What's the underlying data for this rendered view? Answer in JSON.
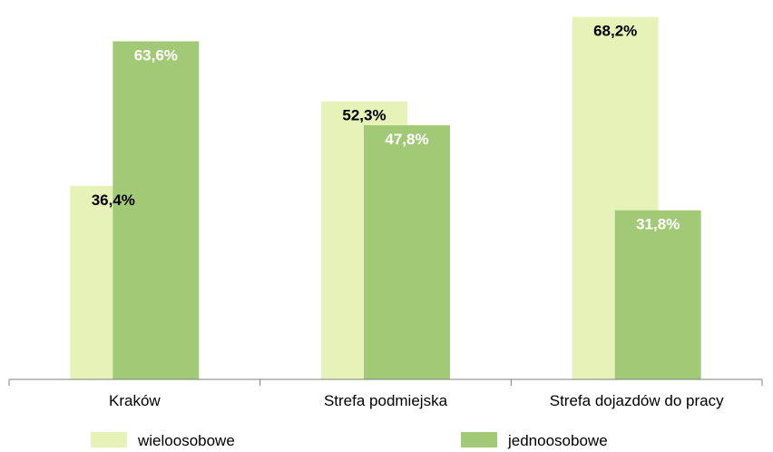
{
  "chart_data": {
    "type": "bar",
    "categories": [
      "Kraków",
      "Strefa podmiejska",
      "Strefa dojazdów do pracy"
    ],
    "series": [
      {
        "name": "wieloosobowe",
        "values": [
          36.4,
          52.3,
          68.2
        ],
        "labels": [
          "36,4%",
          "52,3%",
          "68,2%"
        ],
        "color": "#e6f2b8",
        "label_color": "#000000"
      },
      {
        "name": "jednoosobowe",
        "values": [
          63.6,
          47.8,
          31.8
        ],
        "labels": [
          "63,6%",
          "47,8%",
          "31,8%"
        ],
        "color": "#a2ca76",
        "label_color": "#ffffff"
      }
    ],
    "ylim": [
      0,
      70
    ],
    "legend_position": "bottom",
    "grid": false
  }
}
